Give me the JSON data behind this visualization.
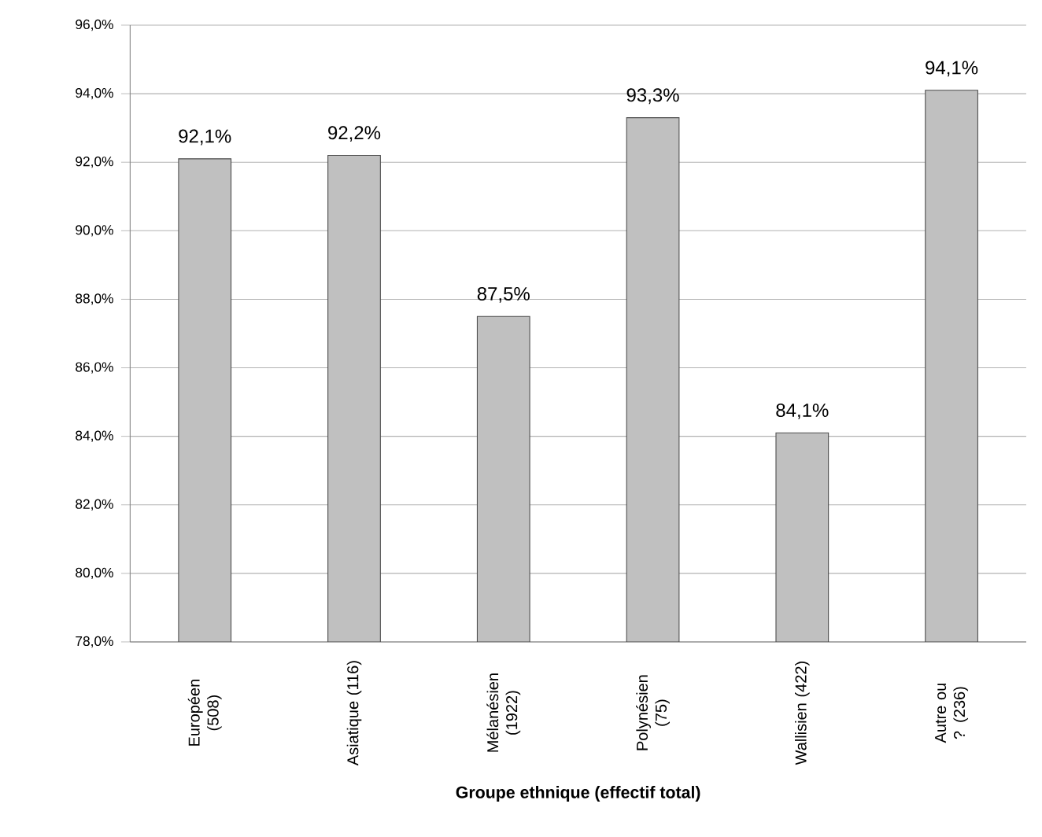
{
  "chart_data": {
    "type": "bar",
    "xlabel": "Groupe ethnique (effectif total)",
    "categories": [
      "Européen (508)",
      "Asiatique (116)",
      "Mélanésien (1922)",
      "Polynésien (75)",
      "Wallisien (422)",
      "Autre ou ? (236)"
    ],
    "values": [
      92.1,
      92.2,
      87.5,
      93.3,
      84.1,
      94.1
    ],
    "value_labels": [
      "92,1%",
      "92,2%",
      "87,5%",
      "93,3%",
      "84,1%",
      "94,1%"
    ],
    "color": "#c0c0c0",
    "ylim": [
      78,
      96
    ],
    "yticks": [
      {
        "value": 78,
        "label": "78,0%"
      },
      {
        "value": 80,
        "label": "80,0%"
      },
      {
        "value": 82,
        "label": "82,0%"
      },
      {
        "value": 84,
        "label": "84,0%"
      },
      {
        "value": 86,
        "label": "86,0%"
      },
      {
        "value": 88,
        "label": "88,0%"
      },
      {
        "value": 90,
        "label": "90,0%"
      },
      {
        "value": 92,
        "label": "92,0%"
      },
      {
        "value": 94,
        "label": "94,0%"
      },
      {
        "value": 96,
        "label": "96,0%"
      }
    ],
    "grid": "y"
  }
}
